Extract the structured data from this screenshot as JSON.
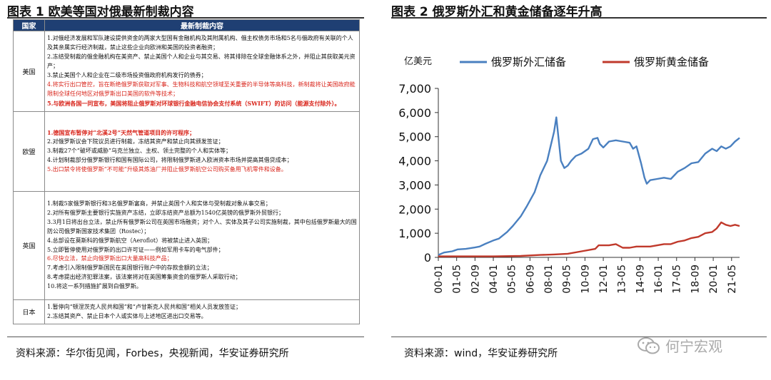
{
  "figure1": {
    "title": "图表 1  欧美等国对俄最新制裁内容",
    "header": {
      "country": "国家",
      "content": "最新制裁内容"
    },
    "source": "资料来源：华尔街见闻，Forbes，央视新闻，华安证券研究所",
    "rows": [
      {
        "country": "美国",
        "items": [
          {
            "text": "1.对俄经济发展和军队建设提供资金的两家大型国有金融机构及其附属机构、俄主权债务市场和5名与俄政府有关联的个人及其亲属实行经济制裁，禁止这些企业向欧洲和美国的投资者融资；",
            "red": false,
            "bold": false
          },
          {
            "text": "2.冻结受制裁的俄金融机构在美资产、禁止美国个人和企业与其交易、将其排除在全球金融体系之外，并阻止其获取美元资产；",
            "red": false,
            "bold": false
          },
          {
            "text": "3.禁止美国个人和企业在二级市场投资俄政府机构发行的债券；",
            "red": false,
            "bold": false
          },
          {
            "text": "4.将实行出口管控，旨在断绝俄罗斯获取对军事、生物科技和航空领域至关重要的半导体等高科技，新制裁将让美国政府能限制全球任何地区对俄罗斯出口美国的软件等技术；",
            "red": true,
            "bold": false
          },
          {
            "text": "5.与欧洲各国一同宣布，美国将阻止俄罗斯对环球银行金融电信协会支付系统（SWIFT）的访问（能源支付除外）。",
            "red": true,
            "bold": true
          }
        ]
      },
      {
        "country": "欧盟",
        "items": [
          {
            "text": "1.德国宣布暂停对“北溪2号”天然气管道项目的许可程序；",
            "red": true,
            "bold": true
          },
          {
            "text": "2.对俄罗斯议会下院议员进行制裁，冻结其资产和禁止向其颁发签证；",
            "red": false,
            "bold": false
          },
          {
            "text": "3.制裁27个“破坏或威胁”乌克兰独立、主权、领土完整的个人和实体等；",
            "red": false,
            "bold": false
          },
          {
            "text": "4.计划制裁部分俄罗斯银行和国有国际公司，将限制俄罗斯进入欧洲资本市场并提高其借贷成本；",
            "red": false,
            "bold": false
          },
          {
            "text": "5.出口禁令将使俄罗斯“不可能”升级其炼油厂并阻止俄罗斯航空公司购买备用飞机零件和设备。",
            "red": true,
            "bold": false
          }
        ]
      },
      {
        "country": "英国",
        "items": [
          {
            "text": "1.制裁5家俄罗斯银行和3名俄罗斯富商，并禁止英国个人和实体与受制裁对象从事交易；",
            "red": false,
            "bold": false
          },
          {
            "text": "2.对所有俄罗斯主要银行实施资产冻结，立即冻结资产总额为1540亿英镑的俄罗斯外贸银行；",
            "red": false,
            "bold": false
          },
          {
            "text": "3.3月1日将出台立法，禁止所有俄罗斯公司在英国市场融资；对个人、实体及其子公司实施制裁，其中包括俄罗斯最大的国防公司俄罗斯国家技术集团（Rostec）；",
            "red": false,
            "bold": false
          },
          {
            "text": "4.总部设在莫斯科的俄罗斯航空（Aeroflot）将被禁止进入英国；",
            "red": false,
            "bold": false
          },
          {
            "text": "5.立即暂停使用对俄罗斯的出口许可证——例如军用卡车的电气部件；",
            "red": false,
            "bold": false
          },
          {
            "text": "6.尽快立法，禁止向俄罗斯出口大量高科技产品；",
            "red": true,
            "bold": false
          },
          {
            "text": "7.考虑引入限制俄罗斯国民在英国银行账户中的存款金额的立法；",
            "red": false,
            "bold": false
          },
          {
            "text": "8.考虑提出经济犯罪法案，该法案将对在英国筹集资金的俄罗斯人采取行动；",
            "red": false,
            "bold": false
          },
          {
            "text": "10.将这一系列措施扩展到白俄罗斯。",
            "red": false,
            "bold": false
          }
        ]
      },
      {
        "country": "日本",
        "items": [
          {
            "text": "1.暂停向“顿涅茨克人民共和国”和“卢甘斯克人民共和国”相关人员发放签证；",
            "red": false,
            "bold": false
          },
          {
            "text": "2.冻结其资产、禁止日本个人或实体与上述地区进出口交易等。",
            "red": false,
            "bold": false
          }
        ]
      }
    ]
  },
  "figure2": {
    "title": "图表 2  俄罗斯外汇和黄金储备逐年升高",
    "source": "资料来源：wind，华安证券研究所",
    "watermark": "何宁宏观",
    "colors": {
      "fx": "#4a80c0",
      "gold": "#c0392b",
      "axis": "#333333"
    },
    "chart_data": {
      "type": "line",
      "unit_label": "亿美元",
      "ylim": [
        0,
        7000
      ],
      "yticks": [
        0,
        1000,
        2000,
        3000,
        4000,
        5000,
        6000,
        7000
      ],
      "ytick_labels": [
        "0",
        "1,000",
        "2,000",
        "3,000",
        "4,000",
        "5,000",
        "6,000",
        "7,000"
      ],
      "xlim": [
        "2000-01",
        "2021-12"
      ],
      "x_tick_labels": [
        "00-01",
        "01-05",
        "02-09",
        "04-01",
        "05-05",
        "06-09",
        "08-01",
        "09-05",
        "10-09",
        "12-01",
        "13-05",
        "14-09",
        "16-01",
        "17-05",
        "18-09",
        "20-01",
        "21-05"
      ],
      "x_tick_dates": [
        "2000-01",
        "2001-05",
        "2002-09",
        "2004-01",
        "2005-05",
        "2006-09",
        "2008-01",
        "2009-05",
        "2010-09",
        "2012-01",
        "2013-05",
        "2014-09",
        "2016-01",
        "2017-05",
        "2018-09",
        "2020-01",
        "2021-05"
      ],
      "legend_position": "top",
      "grid": false,
      "series": [
        {
          "name": "俄罗斯外汇储备",
          "color": "#4a80c0",
          "points": [
            [
              "2000-01",
              100
            ],
            [
              "2000-06",
              200
            ],
            [
              "2001-01",
              250
            ],
            [
              "2001-06",
              330
            ],
            [
              "2002-01",
              350
            ],
            [
              "2002-09",
              410
            ],
            [
              "2003-01",
              450
            ],
            [
              "2003-06",
              560
            ],
            [
              "2004-01",
              700
            ],
            [
              "2004-06",
              780
            ],
            [
              "2005-01",
              1050
            ],
            [
              "2005-06",
              1300
            ],
            [
              "2006-01",
              1700
            ],
            [
              "2006-06",
              2100
            ],
            [
              "2007-01",
              2700
            ],
            [
              "2007-06",
              3400
            ],
            [
              "2007-12",
              4000
            ],
            [
              "2008-03",
              4600
            ],
            [
              "2008-06",
              5200
            ],
            [
              "2008-08",
              5800
            ],
            [
              "2008-10",
              4900
            ],
            [
              "2008-12",
              4000
            ],
            [
              "2009-03",
              3700
            ],
            [
              "2009-06",
              3800
            ],
            [
              "2009-09",
              4000
            ],
            [
              "2010-01",
              4200
            ],
            [
              "2010-06",
              4300
            ],
            [
              "2010-12",
              4500
            ],
            [
              "2011-04",
              4900
            ],
            [
              "2011-08",
              4950
            ],
            [
              "2011-10",
              4700
            ],
            [
              "2012-01",
              4550
            ],
            [
              "2012-06",
              4800
            ],
            [
              "2012-12",
              4850
            ],
            [
              "2013-06",
              4800
            ],
            [
              "2013-12",
              4750
            ],
            [
              "2014-03",
              4500
            ],
            [
              "2014-06",
              4600
            ],
            [
              "2014-10",
              3900
            ],
            [
              "2015-01",
              3300
            ],
            [
              "2015-03",
              3050
            ],
            [
              "2015-06",
              3200
            ],
            [
              "2015-12",
              3250
            ],
            [
              "2016-06",
              3300
            ],
            [
              "2016-12",
              3250
            ],
            [
              "2017-06",
              3550
            ],
            [
              "2017-12",
              3700
            ],
            [
              "2018-06",
              3900
            ],
            [
              "2018-12",
              3950
            ],
            [
              "2019-06",
              4300
            ],
            [
              "2019-12",
              4500
            ],
            [
              "2020-04",
              4400
            ],
            [
              "2020-08",
              4600
            ],
            [
              "2020-12",
              4500
            ],
            [
              "2021-04",
              4600
            ],
            [
              "2021-08",
              4800
            ],
            [
              "2021-12",
              4950
            ]
          ]
        },
        {
          "name": "俄罗斯黄金储备",
          "color": "#c0392b",
          "points": [
            [
              "2000-01",
              40
            ],
            [
              "2002-01",
              40
            ],
            [
              "2004-01",
              40
            ],
            [
              "2006-01",
              60
            ],
            [
              "2007-06",
              100
            ],
            [
              "2008-06",
              120
            ],
            [
              "2009-06",
              150
            ],
            [
              "2010-06",
              250
            ],
            [
              "2011-06",
              350
            ],
            [
              "2011-09",
              500
            ],
            [
              "2012-06",
              500
            ],
            [
              "2012-12",
              550
            ],
            [
              "2013-06",
              400
            ],
            [
              "2013-12",
              400
            ],
            [
              "2014-06",
              450
            ],
            [
              "2014-12",
              450
            ],
            [
              "2015-06",
              450
            ],
            [
              "2016-06",
              550
            ],
            [
              "2016-12",
              550
            ],
            [
              "2017-06",
              650
            ],
            [
              "2017-12",
              700
            ],
            [
              "2018-06",
              800
            ],
            [
              "2018-12",
              850
            ],
            [
              "2019-06",
              1000
            ],
            [
              "2019-12",
              1050
            ],
            [
              "2020-04",
              1200
            ],
            [
              "2020-08",
              1450
            ],
            [
              "2020-12",
              1350
            ],
            [
              "2021-04",
              1300
            ],
            [
              "2021-08",
              1350
            ],
            [
              "2021-12",
              1300
            ]
          ]
        }
      ]
    }
  }
}
